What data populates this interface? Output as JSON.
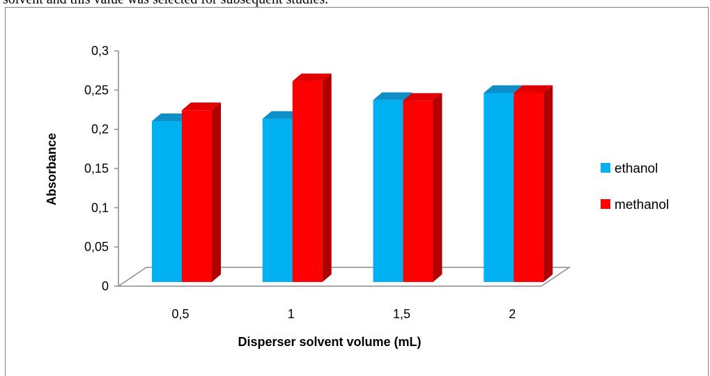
{
  "caption": "solvent and this value was selected for subsequent studies.",
  "chart_data": {
    "type": "bar",
    "style": "3d-clustered-column",
    "categories": [
      "0,5",
      "1",
      "1,5",
      "2"
    ],
    "series": [
      {
        "name": "ethanol",
        "values": [
          0.205,
          0.208,
          0.232,
          0.241
        ],
        "color": "#00b0f0",
        "top_color": "#0e8fc8",
        "side_color": "#0077b0"
      },
      {
        "name": "methanol",
        "values": [
          0.219,
          0.256,
          0.231,
          0.241
        ],
        "color": "#ff0000",
        "top_color": "#e00000",
        "side_color": "#b00000"
      }
    ],
    "xlabel": "Disperser solvent volume (mL)",
    "ylabel": "Absorbance",
    "ylim": [
      0,
      0.3
    ],
    "yticks": [
      "0",
      "0,05",
      "0,1",
      "0,15",
      "0,2",
      "0,25",
      "0,3"
    ],
    "ytick_values": [
      0,
      0.05,
      0.1,
      0.15,
      0.2,
      0.25,
      0.3
    ],
    "legend_position": "right",
    "grid": false
  }
}
